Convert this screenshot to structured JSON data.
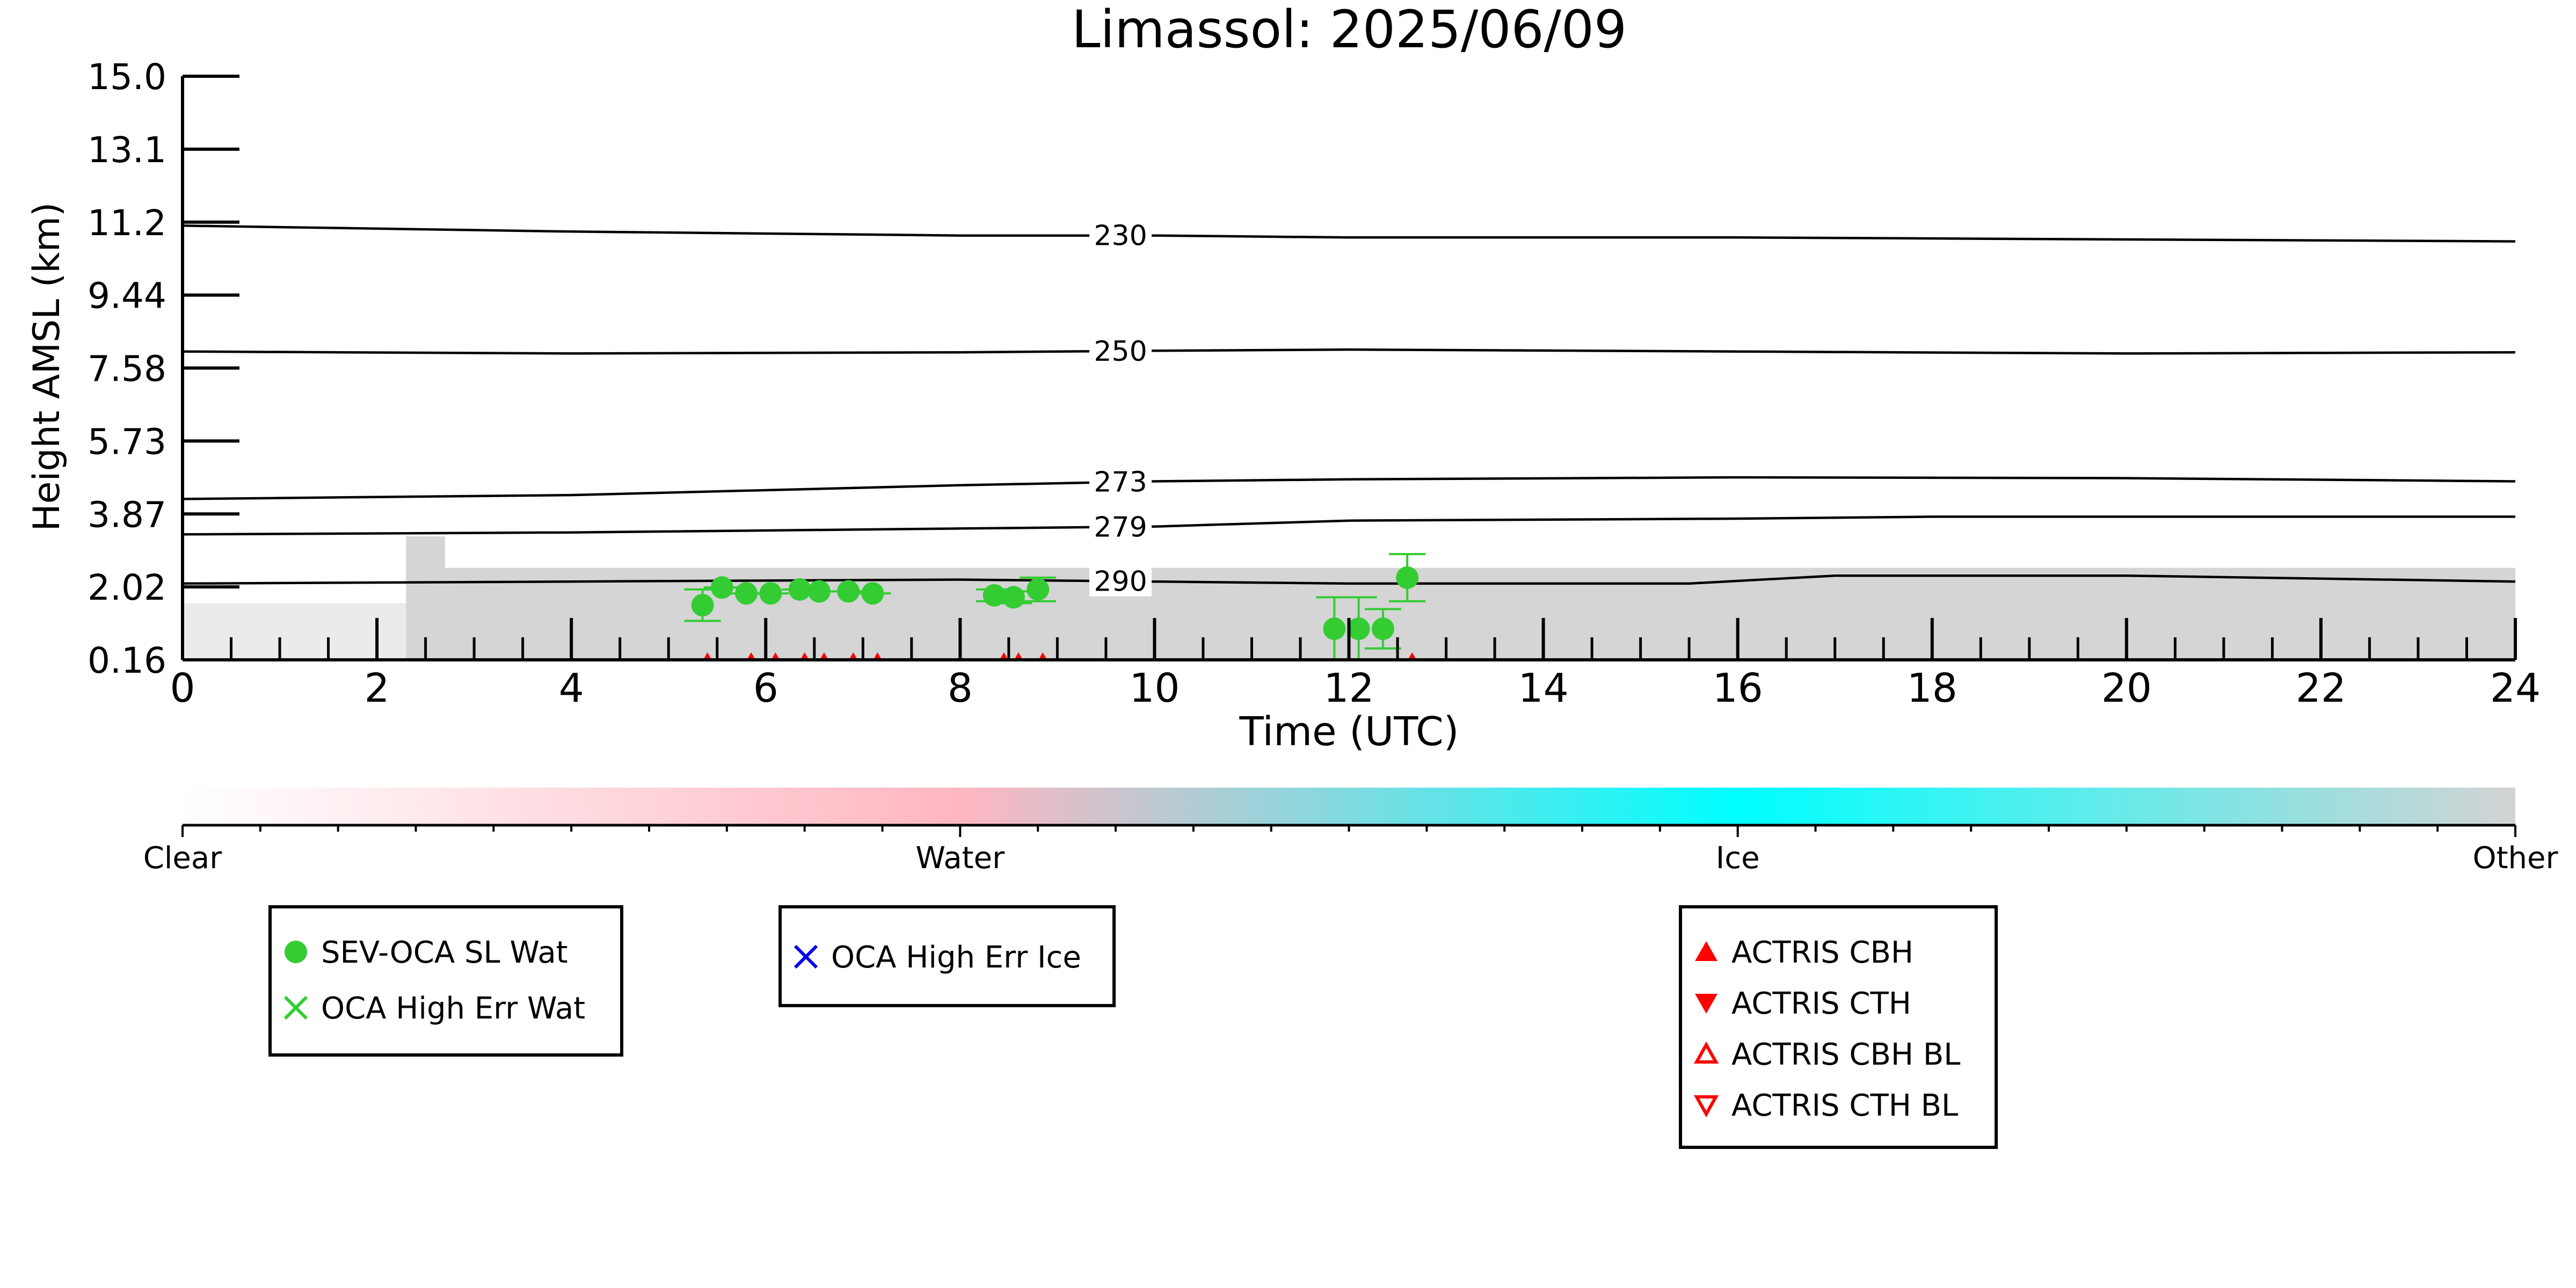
{
  "chart_data": {
    "type": "scatter",
    "title": "Limassol: 2025/06/09",
    "xlabel": "Time (UTC)",
    "ylabel": "Height AMSL (km)",
    "xlim": [
      0,
      24
    ],
    "x_ticks": [
      "0",
      "2",
      "4",
      "6",
      "8",
      "10",
      "12",
      "14",
      "16",
      "18",
      "20",
      "22",
      "24"
    ],
    "y_ticks": [
      "0.16",
      "2.02",
      "3.87",
      "5.73",
      "7.58",
      "9.44",
      "11.2",
      "13.1",
      "15.0"
    ],
    "ylim": [
      0.16,
      15.0
    ],
    "grid": false,
    "contours": [
      {
        "label": "230",
        "points": [
          [
            0,
            11.2
          ],
          [
            4,
            11.05
          ],
          [
            8,
            10.95
          ],
          [
            10,
            10.95
          ],
          [
            12,
            10.9
          ],
          [
            16,
            10.9
          ],
          [
            20,
            10.85
          ],
          [
            24,
            10.8
          ]
        ]
      },
      {
        "label": "250",
        "points": [
          [
            0,
            8.0
          ],
          [
            4,
            7.95
          ],
          [
            8,
            7.98
          ],
          [
            10,
            8.02
          ],
          [
            12,
            8.05
          ],
          [
            16,
            8.0
          ],
          [
            20,
            7.95
          ],
          [
            24,
            7.98
          ]
        ]
      },
      {
        "label": "273",
        "points": [
          [
            0,
            4.25
          ],
          [
            4,
            4.35
          ],
          [
            8,
            4.6
          ],
          [
            10,
            4.7
          ],
          [
            12,
            4.75
          ],
          [
            16,
            4.8
          ],
          [
            20,
            4.78
          ],
          [
            24,
            4.7
          ]
        ]
      },
      {
        "label": "279",
        "points": [
          [
            0,
            3.35
          ],
          [
            4,
            3.4
          ],
          [
            8,
            3.5
          ],
          [
            10,
            3.55
          ],
          [
            12,
            3.7
          ],
          [
            16,
            3.75
          ],
          [
            18,
            3.8
          ],
          [
            20,
            3.8
          ],
          [
            24,
            3.8
          ]
        ]
      },
      {
        "label": "290",
        "points": [
          [
            0,
            2.1
          ],
          [
            4,
            2.15
          ],
          [
            8,
            2.2
          ],
          [
            10,
            2.15
          ],
          [
            12,
            2.1
          ],
          [
            15.5,
            2.1
          ],
          [
            17,
            2.3
          ],
          [
            20,
            2.3
          ],
          [
            24,
            2.15
          ]
        ]
      }
    ],
    "series": [
      {
        "name": "SEV-OCA SL Wat",
        "color": "#33cc33",
        "marker": "circle",
        "points": [
          {
            "x": 5.35,
            "y": 1.55,
            "err": 0.4
          },
          {
            "x": 5.55,
            "y": 2.0,
            "err": 0.0
          },
          {
            "x": 5.8,
            "y": 1.85,
            "err": 0.0
          },
          {
            "x": 6.05,
            "y": 1.85,
            "err": 0.0
          },
          {
            "x": 6.35,
            "y": 1.95,
            "err": 0.0
          },
          {
            "x": 6.55,
            "y": 1.9,
            "err": 0.0
          },
          {
            "x": 6.85,
            "y": 1.9,
            "err": 0.0
          },
          {
            "x": 7.1,
            "y": 1.85,
            "err": 0.0
          },
          {
            "x": 8.35,
            "y": 1.8,
            "err": 0.15
          },
          {
            "x": 8.55,
            "y": 1.75,
            "err": 0.15
          },
          {
            "x": 8.8,
            "y": 1.95,
            "err": 0.3
          },
          {
            "x": 11.85,
            "y": 0.95,
            "err": 0.8
          },
          {
            "x": 12.1,
            "y": 0.95,
            "err": 0.8
          },
          {
            "x": 12.35,
            "y": 0.95,
            "err": 0.5
          },
          {
            "x": 12.6,
            "y": 2.25,
            "err": 0.6
          }
        ]
      },
      {
        "name": "OCA High Err Wat",
        "color": "#33cc33",
        "marker": "x",
        "points": []
      },
      {
        "name": "OCA High Err Ice",
        "color": "#0000ee",
        "marker": "x",
        "points": []
      },
      {
        "name": "ACTRIS CBH",
        "color": "#ff0000",
        "marker": "triangle-up",
        "points": [
          {
            "x": 5.4,
            "y": 0.16
          },
          {
            "x": 5.85,
            "y": 0.16
          },
          {
            "x": 6.1,
            "y": 0.16
          },
          {
            "x": 6.4,
            "y": 0.16
          },
          {
            "x": 6.6,
            "y": 0.16
          },
          {
            "x": 6.9,
            "y": 0.16
          },
          {
            "x": 7.15,
            "y": 0.16
          },
          {
            "x": 8.45,
            "y": 0.16
          },
          {
            "x": 8.6,
            "y": 0.16
          },
          {
            "x": 8.85,
            "y": 0.16
          },
          {
            "x": 12.65,
            "y": 0.16
          }
        ]
      },
      {
        "name": "ACTRIS CTH",
        "color": "#ff0000",
        "marker": "triangle-down",
        "points": []
      },
      {
        "name": "ACTRIS CBH BL",
        "color": "#ff0000",
        "marker": "triangle-up-open",
        "points": []
      },
      {
        "name": "ACTRIS CTH BL",
        "color": "#ff0000",
        "marker": "triangle-down-open",
        "points": []
      }
    ],
    "background_mask": {
      "color": "#d3d3d3",
      "segments": [
        [
          2.3,
          2.7,
          3.3
        ],
        [
          2.7,
          24,
          2.5
        ]
      ],
      "sparse_segments": [
        [
          0,
          2.3,
          1.6
        ]
      ]
    },
    "colorbar": {
      "labels": [
        "Clear",
        "Water",
        "Ice",
        "Other"
      ],
      "colors": [
        "#ffffff",
        "#ffb6c1",
        "#00ffff",
        "#d3d3d3"
      ]
    },
    "legends": [
      {
        "entries": [
          "SEV-OCA SL Wat",
          "OCA High Err Wat"
        ]
      },
      {
        "entries": [
          "OCA High Err Ice"
        ]
      },
      {
        "entries": [
          "ACTRIS CBH",
          "ACTRIS CTH",
          "ACTRIS CBH BL",
          "ACTRIS CTH BL"
        ]
      }
    ]
  }
}
